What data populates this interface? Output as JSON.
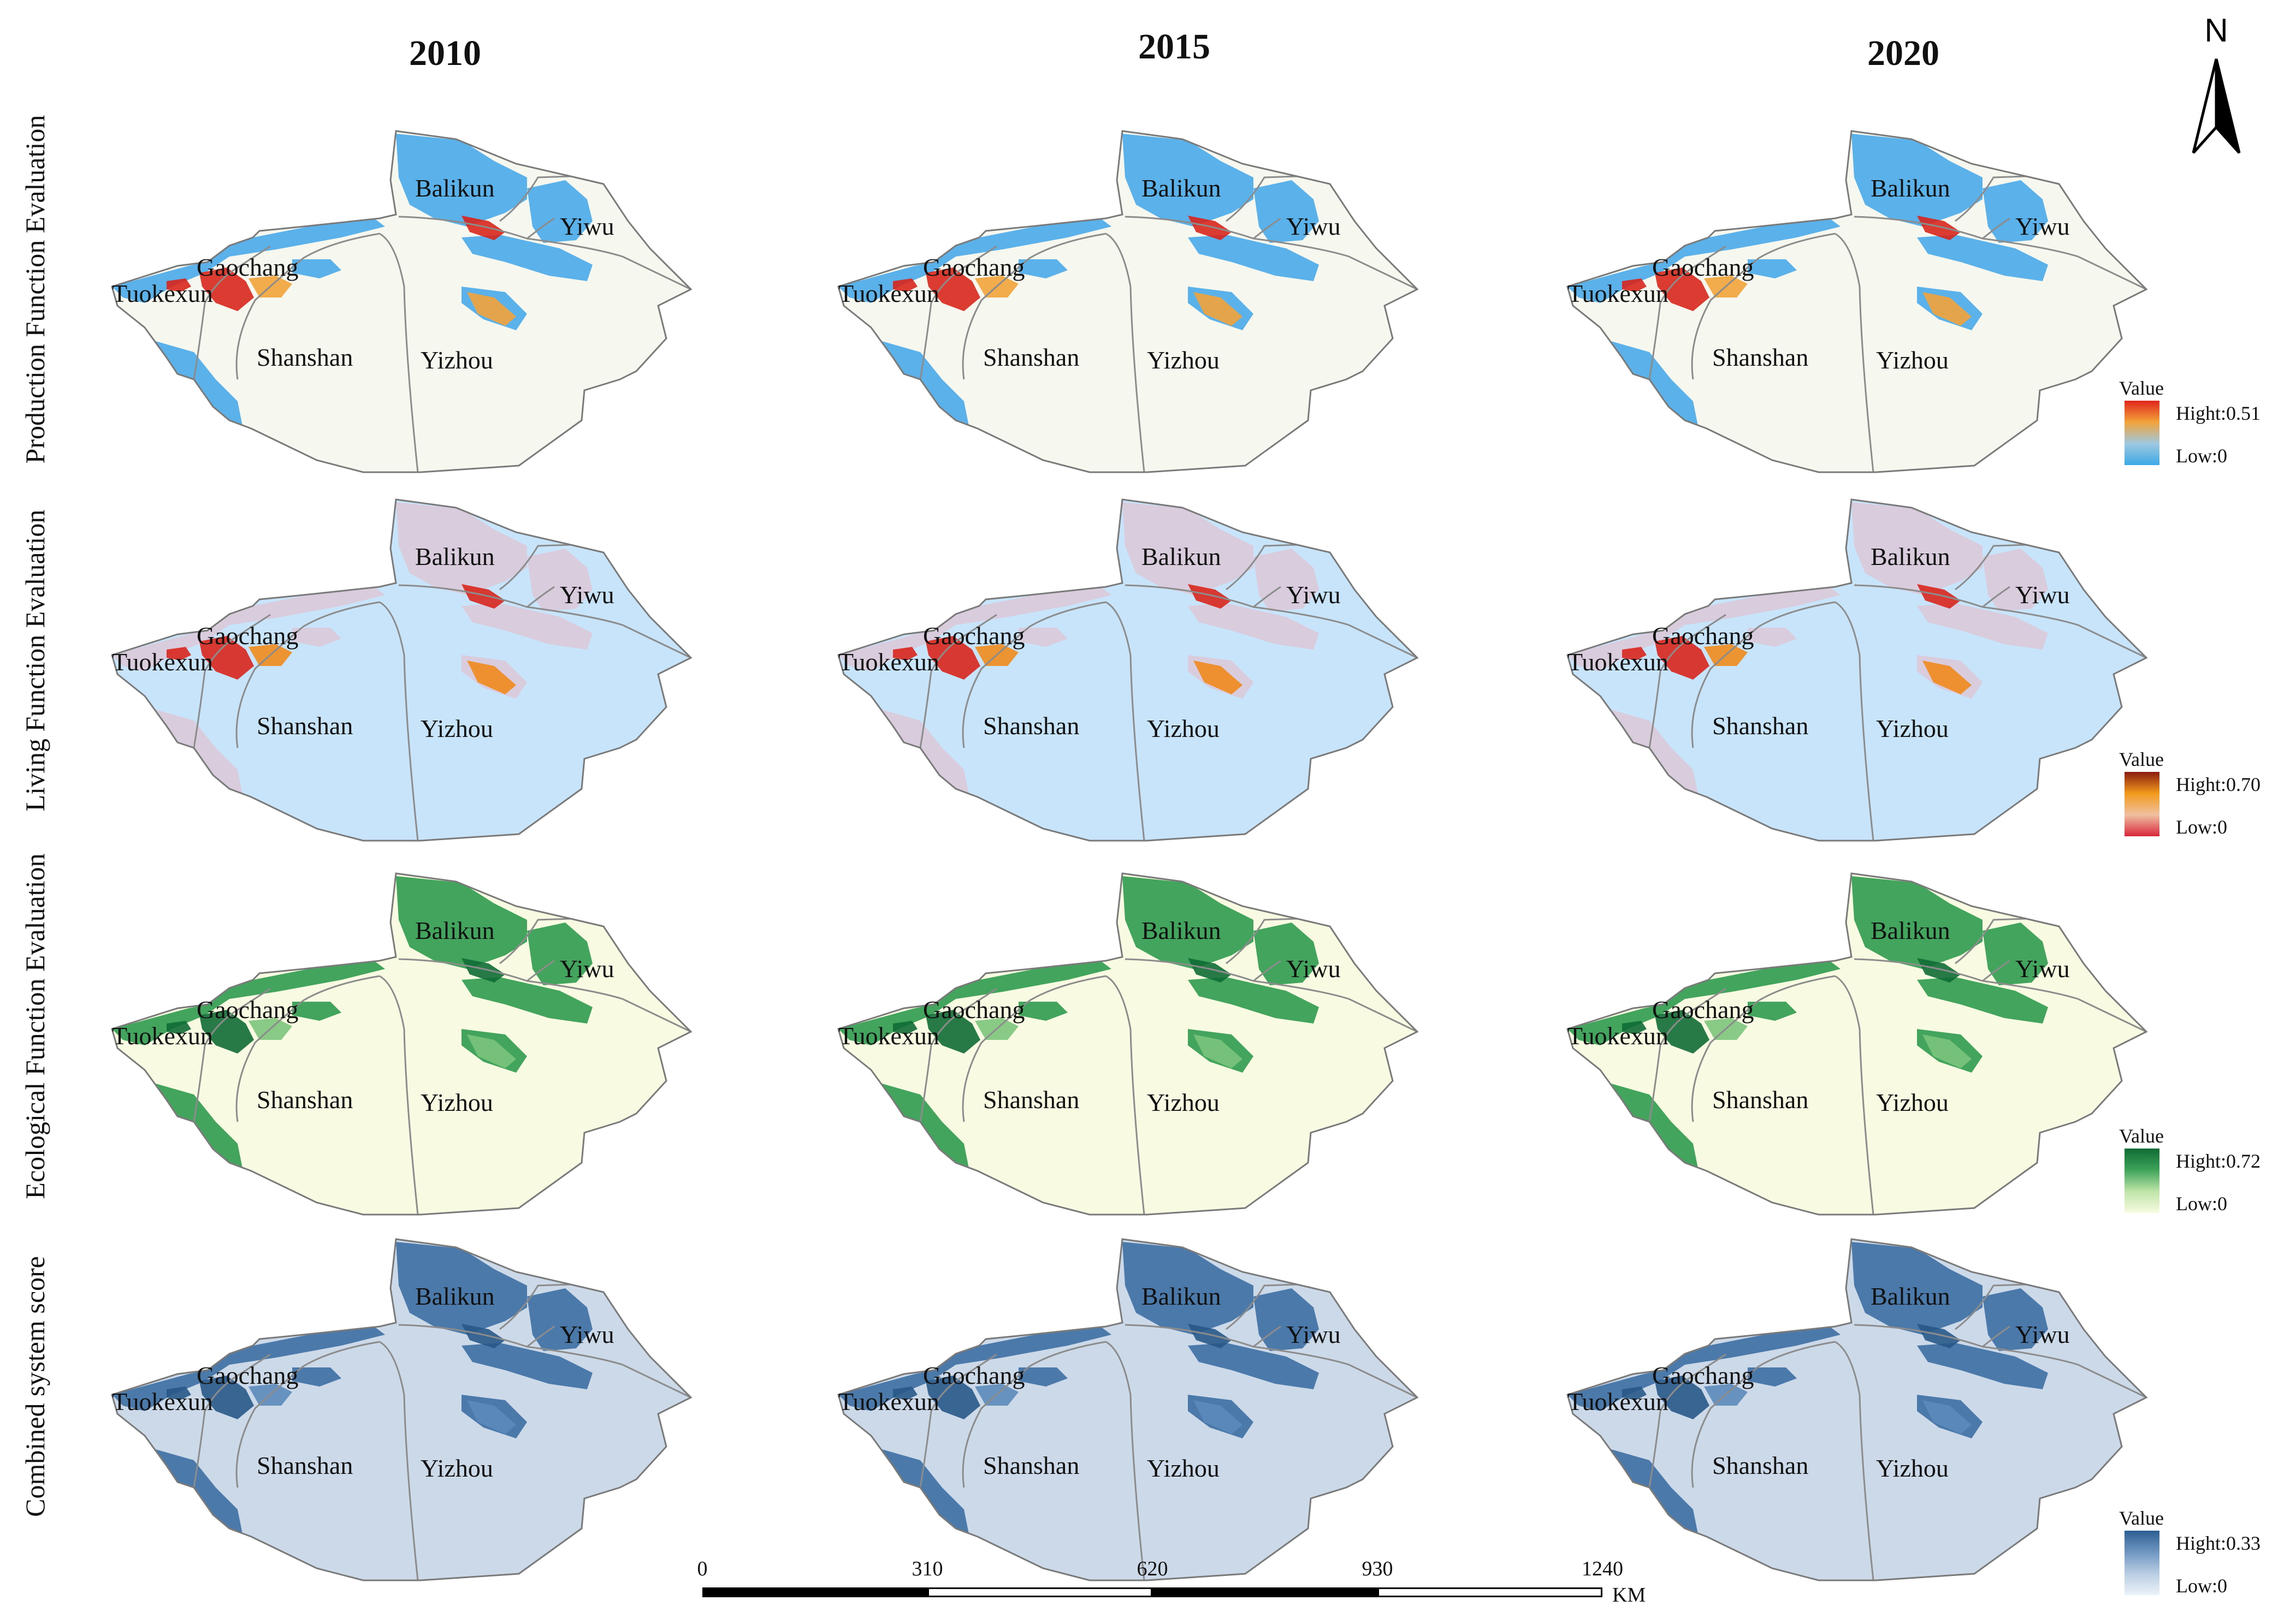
{
  "years": [
    "2010",
    "2015",
    "2020"
  ],
  "rows": [
    {
      "label": "Production Function Evaluation",
      "palette": {
        "base": "#f6f8ef",
        "patch": "#4aa9e8",
        "hot": "#d8261c",
        "warm": "#f2a33a"
      },
      "legend": {
        "title": "Value",
        "high": "Hight:0.51",
        "low": "Low:0",
        "colors": [
          "#e0261c",
          "#f2a33a",
          "#9ec8e0",
          "#3ca9e6"
        ]
      }
    },
    {
      "label": "Living Function Evaluation",
      "palette": {
        "base": "#c7e4fb",
        "patch": "#e7b9c4",
        "hot": "#d8261c",
        "warm": "#f08a1c"
      },
      "legend": {
        "title": "Value",
        "high": "Hight:0.70",
        "low": "Low:0",
        "colors": [
          "#8a1c10",
          "#f29a1c",
          "#f0c0a0",
          "#d8263c"
        ]
      }
    },
    {
      "label": "Ecological Function Evaluation",
      "palette": {
        "base": "#f8fbe1",
        "patch": "#2f9a4f",
        "hot": "#0f6b34",
        "warm": "#7cc47d"
      },
      "legend": {
        "title": "Value",
        "high": "Hight:0.72",
        "low": "Low:0",
        "colors": [
          "#0f6b34",
          "#3fa35a",
          "#bfe5a8",
          "#f8fbe1"
        ]
      }
    },
    {
      "label": "Combined system score",
      "palette": {
        "base": "#cbd9e9",
        "patch": "#3d6ea3",
        "hot": "#285887",
        "warm": "#5c8abb"
      },
      "legend": {
        "title": "Value",
        "high": "Hight:0.33",
        "low": "Low:0",
        "colors": [
          "#2d5f93",
          "#6f96c2",
          "#b9cde3",
          "#ecf2f9"
        ]
      }
    }
  ],
  "places": [
    "Balikun",
    "Yiwu",
    "Gaochang",
    "Tuokexun",
    "Shanshan",
    "Yizhou"
  ],
  "north_label": "N",
  "scale": {
    "ticks": [
      "0",
      "310",
      "620",
      "930",
      "1240"
    ],
    "unit": "KM"
  }
}
